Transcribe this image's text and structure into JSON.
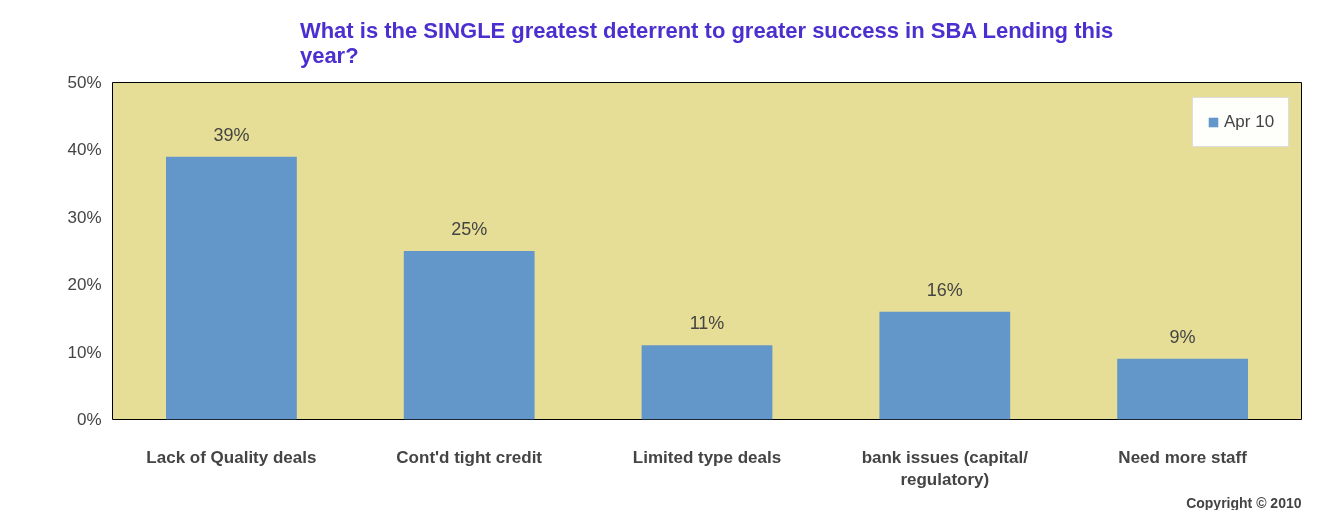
{
  "chart_data": {
    "type": "bar",
    "title": "What is the SINGLE greatest deterrent to greater success in SBA Lending this year?",
    "categories": [
      "Lack of Quality deals",
      "Cont'd tight credit",
      "Limited type deals",
      "bank issues (capital/ regulatory)",
      "Need more staff"
    ],
    "series": [
      {
        "name": "Apr 10",
        "color": "#6497c9",
        "values": [
          39,
          25,
          11,
          16,
          9
        ],
        "value_labels": [
          "39%",
          "25%",
          "11%",
          "16%",
          "9%"
        ]
      }
    ],
    "ylim": [
      0,
      50
    ],
    "yticks": [
      {
        "value": 0,
        "label": "0%"
      },
      {
        "value": 10,
        "label": "10%"
      },
      {
        "value": 20,
        "label": "20%"
      },
      {
        "value": 30,
        "label": "30%"
      },
      {
        "value": 40,
        "label": "40%"
      },
      {
        "value": 50,
        "label": "50%"
      }
    ],
    "grid": false,
    "legend": "top right",
    "annotations": [
      "Copyright © 2010"
    ]
  }
}
